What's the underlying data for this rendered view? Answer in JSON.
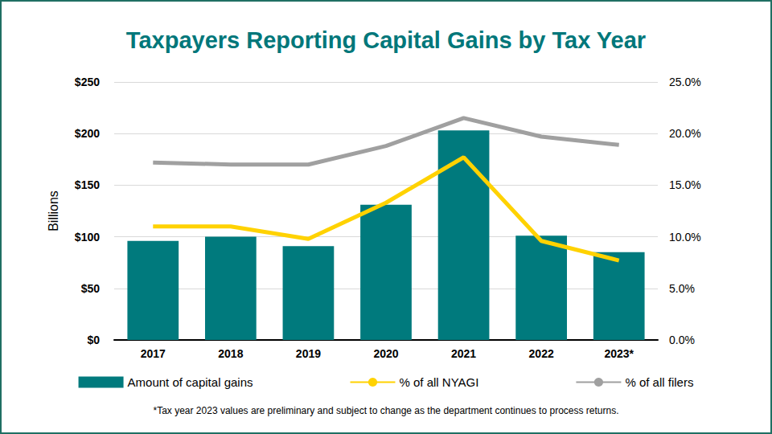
{
  "chart_data": {
    "type": "bar",
    "title": "Taxpayers Reporting Capital Gains by Tax Year",
    "footnote": "*Tax year 2023 values are preliminary and subject to change as the department continues to process returns.",
    "y_label": "Billions",
    "categories": [
      "2017",
      "2018",
      "2019",
      "2020",
      "2021",
      "2022",
      "2023*"
    ],
    "series": [
      {
        "name": "Amount of capital gains",
        "type": "bar",
        "color": "#007A7D",
        "axis": "y",
        "values": [
          96,
          100,
          91,
          131,
          203,
          101,
          85
        ]
      },
      {
        "name": "% of all NYAGI",
        "type": "line",
        "color": "#FFD200",
        "axis": "y2",
        "values": [
          11.0,
          11.0,
          9.8,
          13.3,
          17.7,
          9.6,
          7.7
        ]
      },
      {
        "name": "% of all filers",
        "type": "line",
        "color": "#A0A0A0",
        "axis": "y2",
        "values": [
          17.2,
          17.0,
          17.0,
          18.8,
          21.5,
          19.7,
          18.9
        ]
      }
    ],
    "ylim": [
      0,
      250
    ],
    "yticks": [
      {
        "value": 0,
        "label": "$0"
      },
      {
        "value": 50,
        "label": "$50"
      },
      {
        "value": 100,
        "label": "$100"
      },
      {
        "value": 150,
        "label": "$150"
      },
      {
        "value": 200,
        "label": "$200"
      },
      {
        "value": 250,
        "label": "$250"
      }
    ],
    "y2lim": [
      0,
      25
    ],
    "y2ticks": [
      {
        "value": 0,
        "label": "0.0%"
      },
      {
        "value": 5,
        "label": "5.0%"
      },
      {
        "value": 10,
        "label": "10.0%"
      },
      {
        "value": 15,
        "label": "15.0%"
      },
      {
        "value": 20,
        "label": "20.0%"
      },
      {
        "value": 25,
        "label": "25.0%"
      }
    ],
    "grid": true,
    "legend": "bottom"
  }
}
